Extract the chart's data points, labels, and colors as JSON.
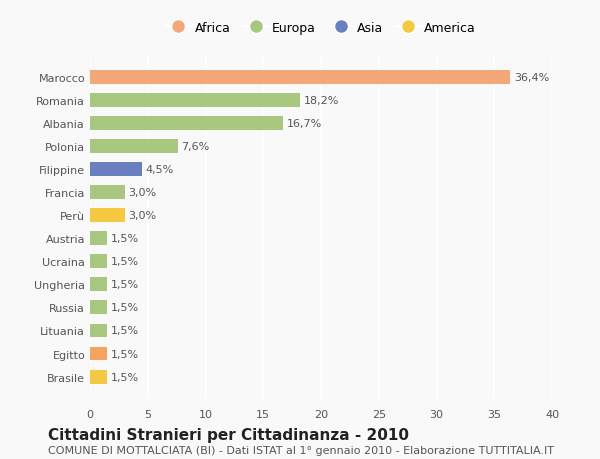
{
  "categories": [
    "Brasile",
    "Egitto",
    "Lituania",
    "Russia",
    "Ungheria",
    "Ucraina",
    "Austria",
    "Perù",
    "Francia",
    "Filippine",
    "Polonia",
    "Albania",
    "Romania",
    "Marocco"
  ],
  "values": [
    1.5,
    1.5,
    1.5,
    1.5,
    1.5,
    1.5,
    1.5,
    3.0,
    3.0,
    4.5,
    7.6,
    16.7,
    18.2,
    36.4
  ],
  "labels": [
    "1,5%",
    "1,5%",
    "1,5%",
    "1,5%",
    "1,5%",
    "1,5%",
    "1,5%",
    "3,0%",
    "3,0%",
    "4,5%",
    "7,6%",
    "16,7%",
    "18,2%",
    "36,4%"
  ],
  "colors": [
    "#f5c842",
    "#f4a460",
    "#a8c880",
    "#a8c880",
    "#a8c880",
    "#a8c880",
    "#a8c880",
    "#f5c842",
    "#a8c880",
    "#6a7fbf",
    "#a8c880",
    "#a8c880",
    "#a8c880",
    "#f4a87a"
  ],
  "legend_labels": [
    "Africa",
    "Europa",
    "Asia",
    "America"
  ],
  "legend_colors": [
    "#f4a87a",
    "#a8c880",
    "#6a7fbf",
    "#f5c842"
  ],
  "title": "Cittadini Stranieri per Cittadinanza - 2010",
  "subtitle": "COMUNE DI MOTTALCIATA (BI) - Dati ISTAT al 1° gennaio 2010 - Elaborazione TUTTITALIA.IT",
  "xlim": [
    0,
    40
  ],
  "xticks": [
    0,
    5,
    10,
    15,
    20,
    25,
    30,
    35,
    40
  ],
  "background_color": "#f9f9f9",
  "bar_height": 0.6,
  "title_fontsize": 11,
  "subtitle_fontsize": 8,
  "label_fontsize": 8,
  "tick_fontsize": 8,
  "legend_fontsize": 9
}
